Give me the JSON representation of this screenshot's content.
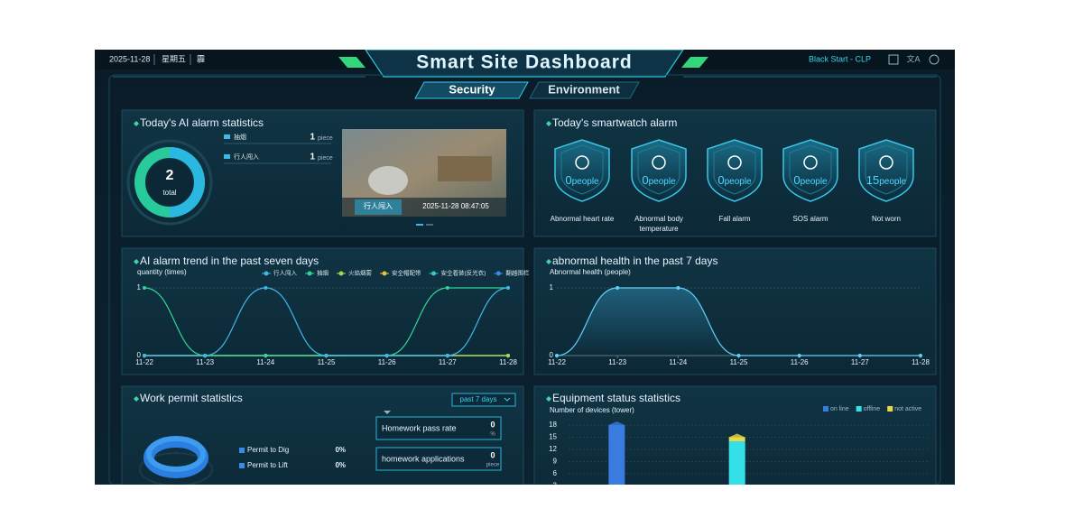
{
  "header": {
    "date": "2025-11-28",
    "weekday": "星期五",
    "weather": "霾",
    "title": "Smart Site Dashboard",
    "user": "Black Start - CLP"
  },
  "tabs": [
    "Security",
    "Environment"
  ],
  "ai_alarm": {
    "title": "Today's AI alarm statistics",
    "total": 2,
    "total_label": "total",
    "items": [
      {
        "name": "抽烟",
        "count": 1,
        "unit": "piece"
      },
      {
        "name": "行人闯入",
        "count": 1,
        "unit": "piece"
      }
    ],
    "snapshot": {
      "label": "行人闯入",
      "time": "2025-11-28 08:47:05"
    }
  },
  "smartwatch": {
    "title": "Today's smartwatch alarm",
    "items": [
      {
        "count": 0,
        "unit": "people",
        "name": "Abnormal heart rate"
      },
      {
        "count": 0,
        "unit": "people",
        "name": "Abnormal body temperature"
      },
      {
        "count": 0,
        "unit": "people",
        "name": "Fall alarm"
      },
      {
        "count": 0,
        "unit": "people",
        "name": "SOS alarm"
      },
      {
        "count": 15,
        "unit": "people",
        "name": "Not worn"
      }
    ]
  },
  "ai_trend": {
    "type": "line",
    "title": "AI alarm trend in the past seven days",
    "y_label": "quantity (times)",
    "categories": [
      "11-22",
      "11-23",
      "11-24",
      "11-25",
      "11-26",
      "11-27",
      "11-28"
    ],
    "ylim": [
      0,
      1
    ],
    "yticks": [
      0,
      1
    ],
    "grid": true,
    "series": [
      {
        "name": "行人闯入",
        "color": "#3fb7e8",
        "values": [
          0,
          0,
          1,
          0,
          0,
          0,
          1
        ]
      },
      {
        "name": "抽烟",
        "color": "#2fd69a",
        "values": [
          1,
          0,
          0,
          0,
          0,
          1,
          1
        ]
      },
      {
        "name": "火焰烟雾",
        "color": "#a8d84a",
        "values": [
          0,
          0,
          0,
          0,
          0,
          0,
          0
        ]
      },
      {
        "name": "安全帽配带",
        "color": "#e8c43a",
        "values": [
          0,
          0,
          0,
          0,
          0,
          0,
          0
        ]
      },
      {
        "name": "安全着装(反光衣)",
        "color": "#33c9c0",
        "values": [
          0,
          0,
          0,
          0,
          0,
          0,
          0
        ]
      },
      {
        "name": "翻越围栏",
        "color": "#3a8be8",
        "values": [
          0,
          0,
          0,
          0,
          0,
          0,
          0
        ]
      }
    ]
  },
  "health_trend": {
    "type": "line",
    "title": "abnormal health in the past 7 days",
    "y_label": "Abnormal health (people)",
    "categories": [
      "11-22",
      "11-23",
      "11-24",
      "11-25",
      "11-26",
      "11-27",
      "11-28"
    ],
    "ylim": [
      0,
      1
    ],
    "yticks": [
      0,
      1
    ],
    "grid": true,
    "series": [
      {
        "color": "#5fd3f5",
        "values": [
          0,
          1,
          1,
          0,
          0,
          0,
          0
        ]
      }
    ]
  },
  "work_permit": {
    "title": "Work permit statistics",
    "filter": "past 7 days",
    "items": [
      {
        "name": "Permit to Dig",
        "value": "0%"
      },
      {
        "name": "Permit to Lift",
        "value": "0%"
      }
    ],
    "stats": [
      {
        "label": "Homework pass rate",
        "value": 0,
        "unit": "%"
      },
      {
        "label": "homework applications",
        "value": 0,
        "unit": "piece"
      }
    ]
  },
  "equipment": {
    "type": "bar",
    "title": "Equipment status statistics",
    "y_label": "Number of devices (tower)",
    "categories": [
      null,
      null,
      null
    ],
    "ylim": [
      0,
      18
    ],
    "yticks": [
      0,
      3,
      6,
      9,
      12,
      15,
      18
    ],
    "stacked": true,
    "series": [
      {
        "name": "on line",
        "color": "#3a7be0",
        "values": [
          18,
          0,
          0
        ]
      },
      {
        "name": "offline",
        "color": "#35e0e8",
        "values": [
          0,
          14,
          0
        ]
      },
      {
        "name": "not active",
        "color": "#e8d84a",
        "values": [
          0,
          1,
          0
        ]
      }
    ]
  }
}
